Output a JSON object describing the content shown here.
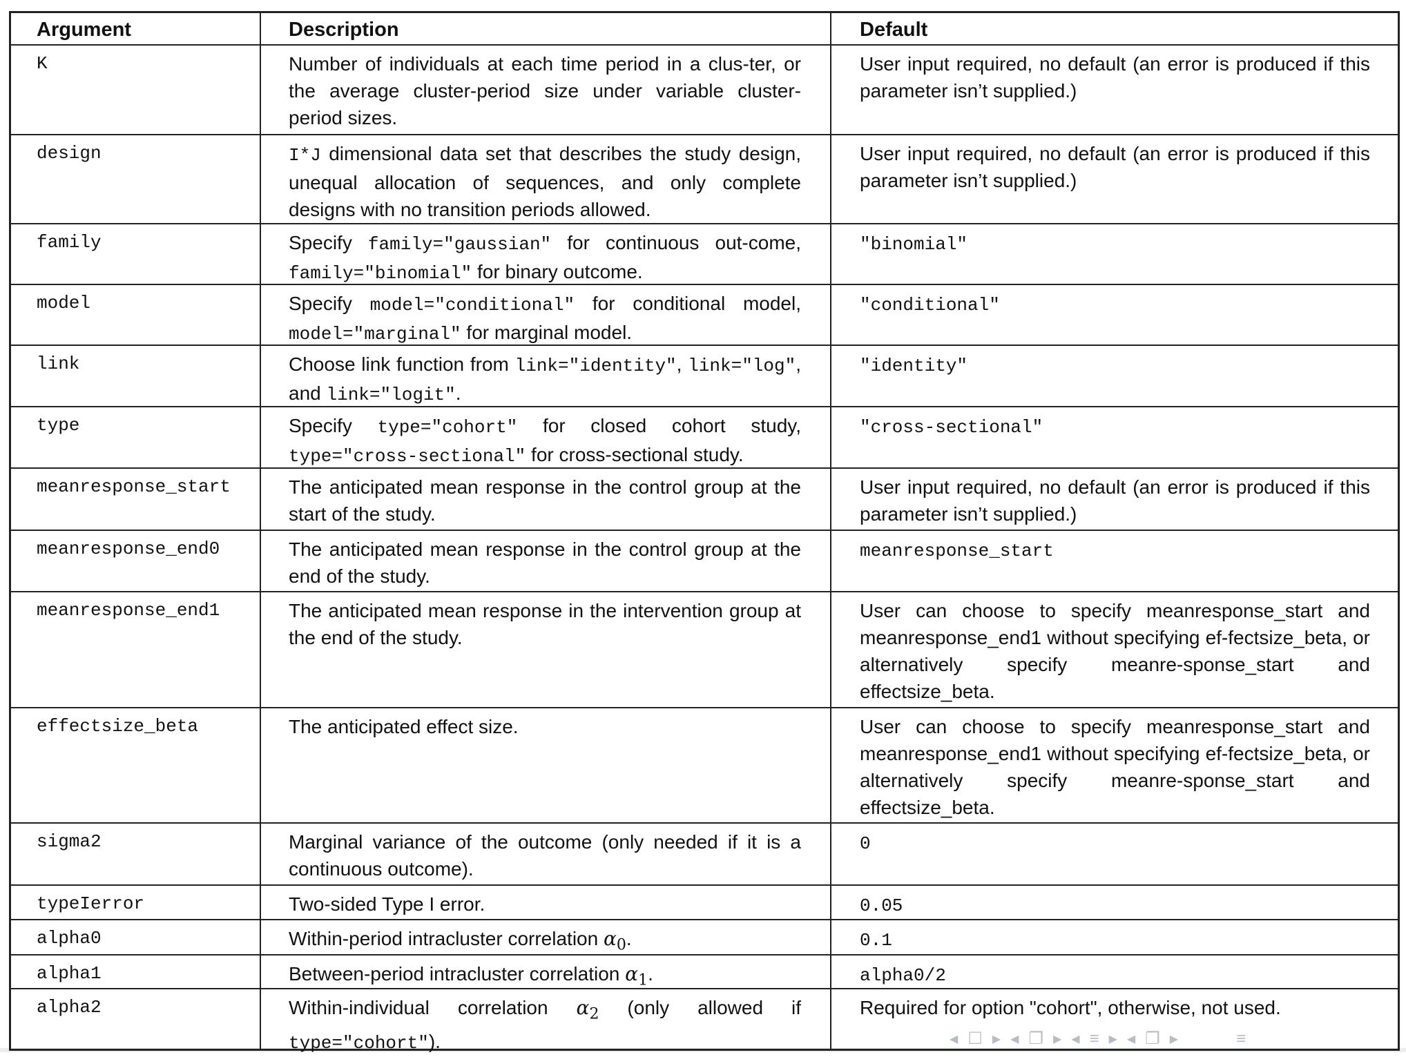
{
  "headers": {
    "argument": "Argument",
    "description": "Description",
    "default": "Default"
  },
  "rows": [
    {
      "arg": "K",
      "desc": [
        {
          "t": "Number of individuals at each time period in a clus-ter, or the average cluster-period size under variable cluster-period sizes."
        }
      ],
      "def": [
        {
          "t": "User input required, no default (an error is produced if this parameter isn’t supplied.)"
        }
      ]
    },
    {
      "arg": "design",
      "desc": [
        {
          "t": "I*J",
          "code": true
        },
        {
          "t": " dimensional data set that describes the study design, unequal allocation of sequences, and only complete designs with no transition periods allowed."
        }
      ],
      "def": [
        {
          "t": "User input required, no default (an error is produced if this parameter isn’t supplied.)"
        }
      ]
    },
    {
      "arg": "family",
      "desc": [
        {
          "t": "Specify "
        },
        {
          "t": "family=\"gaussian\"",
          "code": true
        },
        {
          "t": " for continuous out-come, "
        },
        {
          "t": "family=\"binomial\"",
          "code": true
        },
        {
          "t": " for binary outcome."
        }
      ],
      "def": [
        {
          "t": "\"binomial\"",
          "code": true
        }
      ]
    },
    {
      "arg": "model",
      "desc": [
        {
          "t": "Specify "
        },
        {
          "t": "model=\"conditional\"",
          "code": true
        },
        {
          "t": " for conditional model, "
        },
        {
          "t": "model=\"marginal\"",
          "code": true
        },
        {
          "t": " for marginal model."
        }
      ],
      "def": [
        {
          "t": "\"conditional\"",
          "code": true
        }
      ]
    },
    {
      "arg": "link",
      "desc": [
        {
          "t": "Choose link function from "
        },
        {
          "t": "link=\"identity\"",
          "code": true
        },
        {
          "t": ", "
        },
        {
          "t": "link=\"log\"",
          "code": true
        },
        {
          "t": ", and "
        },
        {
          "t": "link=\"logit\"",
          "code": true
        },
        {
          "t": "."
        }
      ],
      "def": [
        {
          "t": "\"identity\"",
          "code": true
        }
      ]
    },
    {
      "arg": "type",
      "desc": [
        {
          "t": "Specify "
        },
        {
          "t": "type=\"cohort\"",
          "code": true
        },
        {
          "t": " for closed cohort study, "
        },
        {
          "t": "type=\"cross-sectional\"",
          "code": true
        },
        {
          "t": " for cross-sectional study."
        }
      ],
      "def": [
        {
          "t": "\"cross-sectional\"",
          "code": true
        }
      ]
    },
    {
      "arg": "meanresponse_start",
      "desc": [
        {
          "t": "The anticipated mean response in the control group at the start of the study."
        }
      ],
      "def": [
        {
          "t": "User input required, no default (an error is produced if this parameter isn’t supplied.)"
        }
      ]
    },
    {
      "arg": "meanresponse_end0",
      "desc": [
        {
          "t": "The anticipated mean response in the control group at the end of the study."
        }
      ],
      "def": [
        {
          "t": "meanresponse_start",
          "code": true
        }
      ]
    },
    {
      "arg": "meanresponse_end1",
      "desc": [
        {
          "t": "The anticipated mean response in the intervention group at the end of the study."
        }
      ],
      "def": [
        {
          "t": "User can choose to specify meanresponse_start and meanresponse_end1 without specifying ef-fectsize_beta, or alternatively specify meanre-sponse_start and effectsize_beta."
        }
      ]
    },
    {
      "arg": "effectsize_beta",
      "desc": [
        {
          "t": "The anticipated effect size."
        }
      ],
      "def": [
        {
          "t": "User can choose to specify meanresponse_start and meanresponse_end1 without specifying ef-fectsize_beta, or alternatively specify meanre-sponse_start and effectsize_beta."
        }
      ]
    },
    {
      "arg": "sigma2",
      "desc": [
        {
          "t": "Marginal variance of the outcome (only needed if it is a continuous outcome)."
        }
      ],
      "def": [
        {
          "t": "0",
          "code": true
        }
      ]
    },
    {
      "arg": "typeIerror",
      "desc": [
        {
          "t": "Two-sided Type I error."
        }
      ],
      "def": [
        {
          "t": "0.05",
          "code": true
        }
      ]
    },
    {
      "arg": "alpha0",
      "desc": [
        {
          "t": "Within-period intracluster correlation "
        },
        {
          "t": "α",
          "math": true,
          "sub": "0"
        },
        {
          "t": "."
        }
      ],
      "def": [
        {
          "t": "0.1",
          "code": true
        }
      ]
    },
    {
      "arg": "alpha1",
      "desc": [
        {
          "t": "Between-period intracluster correlation "
        },
        {
          "t": "α",
          "math": true,
          "sub": "1"
        },
        {
          "t": "."
        }
      ],
      "def": [
        {
          "t": "alpha0/2",
          "code": true
        }
      ]
    },
    {
      "arg": "alpha2",
      "desc": [
        {
          "t": "Within-individual correlation "
        },
        {
          "t": "α",
          "math": true,
          "sub": "2"
        },
        {
          "t": " (only allowed if "
        },
        {
          "t": "type=\"cohort\"",
          "code": true
        },
        {
          "t": ")."
        }
      ],
      "def": [
        {
          "t": "Required for option \"cohort\", otherwise, not used."
        }
      ]
    }
  ],
  "nav_icons": [
    "arrow-left-icon",
    "frame-icon",
    "arrow-right-icon",
    "arrow-left-icon",
    "subsection-icon",
    "arrow-right-icon",
    "arrow-left-icon",
    "section-icon",
    "arrow-right-icon",
    "arrow-left-icon",
    "subsection-icon",
    "arrow-right-icon",
    "appendix-icon"
  ],
  "colors": {
    "border": "#222222",
    "nav": "#b8bcc6"
  }
}
